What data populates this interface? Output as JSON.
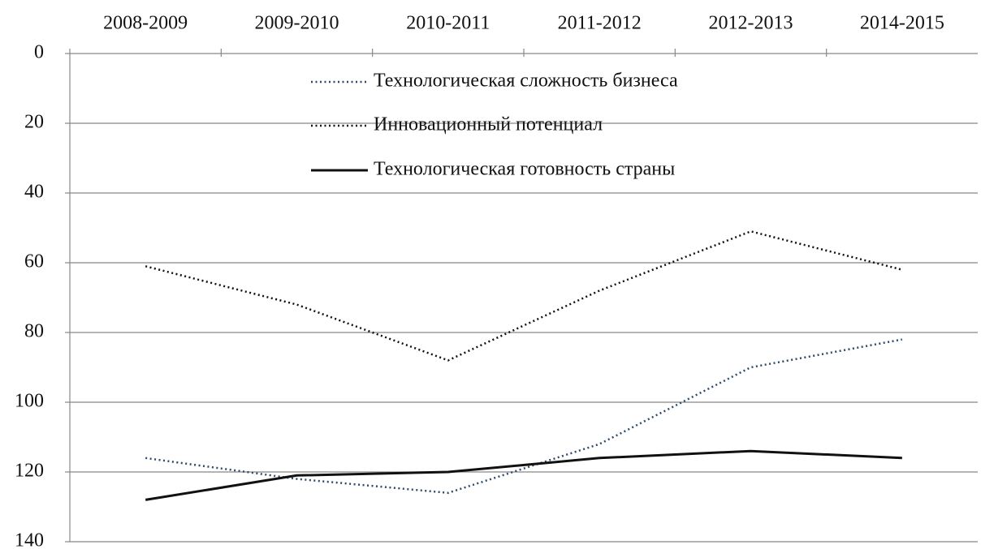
{
  "chart_data": {
    "type": "line",
    "categories": [
      "2008-2009",
      "2009-2010",
      "2010-2011",
      "2011-2012",
      "2012-2013",
      "2014-2015"
    ],
    "series": [
      {
        "name": "Технологическая сложность бизнеса",
        "color": "#2e4a6b",
        "dash": "dotted",
        "values": [
          116,
          122,
          126,
          112,
          90,
          82
        ]
      },
      {
        "name": "Инновационный потенциал",
        "color": "#111111",
        "dash": "dotted",
        "values": [
          61,
          72,
          88,
          68,
          51,
          62
        ]
      },
      {
        "name": "Технологическая готовность страны",
        "color": "#111111",
        "dash": "solid",
        "values": [
          128,
          121,
          120,
          116,
          114,
          116
        ]
      }
    ],
    "ylim": [
      0,
      140
    ],
    "yticks": [
      0,
      20,
      40,
      60,
      80,
      100,
      120,
      140
    ],
    "y_inverted": true,
    "grid": true,
    "legend": "top"
  }
}
